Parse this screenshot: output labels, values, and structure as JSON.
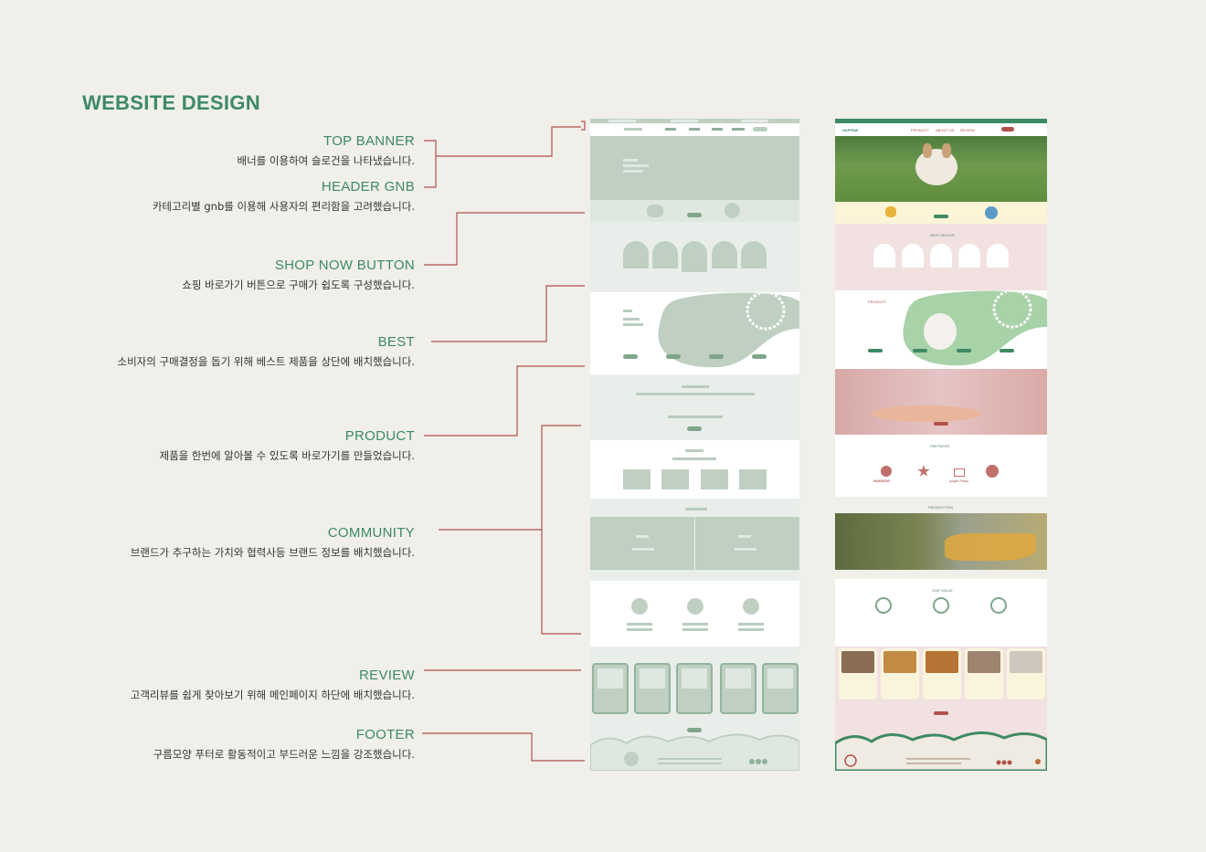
{
  "title": "WEBSITE DESIGN",
  "sections": [
    {
      "heading": "TOP BANNER",
      "desc": "배너를 이용하여 슬로건을 나타냈습니다."
    },
    {
      "heading": "HEADER GNB",
      "desc": "카테고리별 gnb를 이용해 사용자의 편리함을 고려했습니다."
    },
    {
      "heading": "SHOP NOW BUTTON",
      "desc": "쇼핑 바로가기 버튼으로 구매가 쉽도록 구성했습니다."
    },
    {
      "heading": "BEST",
      "desc": "소비자의 구매결정을 돕기 위해 베스트 제품을 상단에 배치했습니다."
    },
    {
      "heading": "PRODUCT",
      "desc": "제품을 한번에 알아볼 수 있도록 바로가기를 만들었습니다."
    },
    {
      "heading": "COMMUNITY",
      "desc": "브랜드가 추구하는 가치와 협력사등 브랜드 정보를 배치했습니다."
    },
    {
      "heading": "REVIEW",
      "desc": "고객리뷰를 쉽게 찾아보기 위해 메인페이지 하단에 배치했습니다."
    },
    {
      "heading": "FOOTER",
      "desc": "구름모양 푸터로 활동적이고 부드러운 느낌을 강조했습니다."
    }
  ],
  "mockup": {
    "logo": "HAPPAW",
    "nav": [
      "PRODUCT",
      "ABOUT US",
      "REVIEW"
    ],
    "best_title": "BEST SELLER",
    "product_title": "PRODUCT",
    "partners_title": "PARTNERS",
    "partners": [
      "HUGDOG",
      "Angel Paws"
    ],
    "production_title": "PRODUCTION",
    "value_title": "OUR VALUE"
  },
  "colors": {
    "accent_green": "#3d8a63",
    "connector": "#b0524a",
    "wire_green": "#bfd0c2",
    "mock_green": "#a8d2a8",
    "mock_pink": "#f2e1e1",
    "mock_rose": "#e6c4c4",
    "mock_cream": "#fbf4d6"
  }
}
